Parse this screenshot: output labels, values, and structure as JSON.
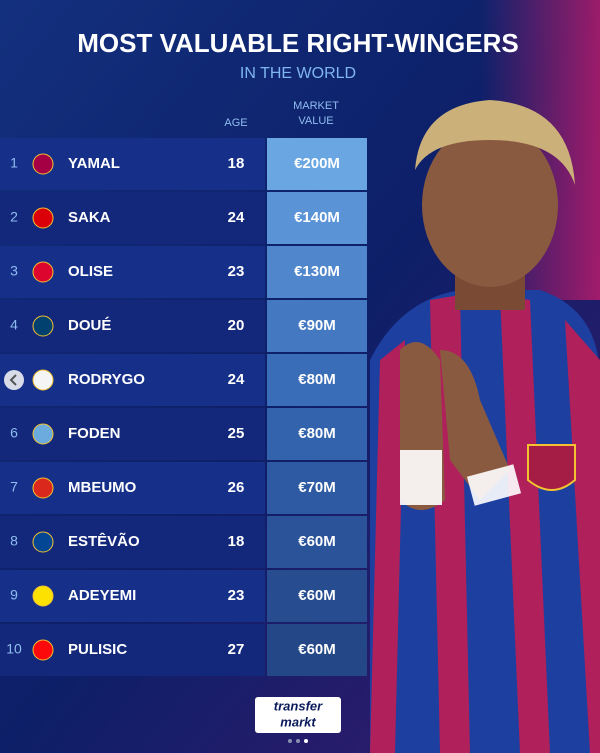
{
  "header": {
    "title": "MOST VALUABLE RIGHT-WINGERS",
    "subtitle": "IN THE WORLD"
  },
  "table": {
    "columns": [
      "AGE",
      "MARKET VALUE"
    ],
    "rows": [
      {
        "rank": 1,
        "player": "YAMAL",
        "age": 18,
        "value": "€200M"
      },
      {
        "rank": 2,
        "player": "SAKA",
        "age": 24,
        "value": "€140M"
      },
      {
        "rank": 3,
        "player": "OLISE",
        "age": 23,
        "value": "€130M"
      },
      {
        "rank": 4,
        "player": "DOUÉ",
        "age": 20,
        "value": "€90M"
      },
      {
        "rank": null,
        "player": "RODRYGO",
        "age": 24,
        "value": "€80M"
      },
      {
        "rank": 6,
        "player": "FODEN",
        "age": 25,
        "value": "€80M"
      },
      {
        "rank": 7,
        "player": "MBEUMO",
        "age": 26,
        "value": "€70M"
      },
      {
        "rank": 8,
        "player": "ESTÊVÃO",
        "age": 18,
        "value": "€60M"
      },
      {
        "rank": 9,
        "player": "ADEYEMI",
        "age": 23,
        "value": "€60M"
      },
      {
        "rank": 10,
        "player": "PULISIC",
        "age": 27,
        "value": "€60M"
      }
    ]
  },
  "footer": {
    "logo_line1": "transfer",
    "logo_line2": "markt"
  }
}
